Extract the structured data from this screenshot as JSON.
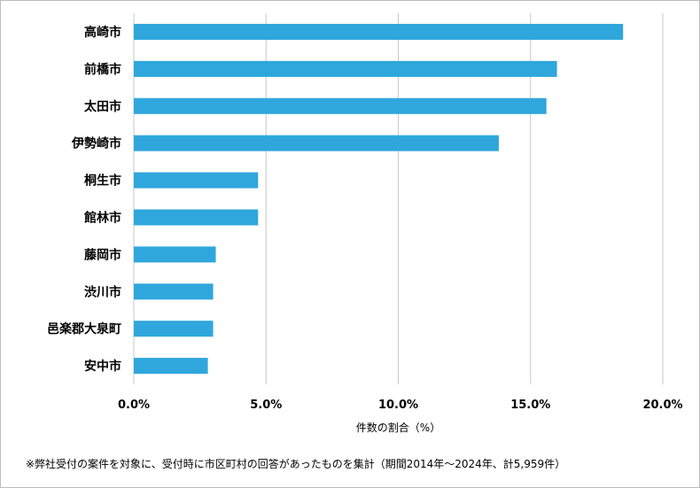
{
  "chart_data": {
    "type": "bar",
    "orientation": "horizontal",
    "categories": [
      "高崎市",
      "前橋市",
      "太田市",
      "伊勢崎市",
      "桐生市",
      "館林市",
      "藤岡市",
      "渋川市",
      "邑楽郡大泉町",
      "安中市"
    ],
    "values": [
      18.5,
      16.0,
      15.6,
      13.8,
      4.7,
      4.7,
      3.1,
      3.0,
      3.0,
      2.8
    ],
    "xlim": [
      0,
      20
    ],
    "xticks": [
      0,
      5,
      10,
      15,
      20
    ],
    "xtick_labels": [
      "0.0%",
      "5.0%",
      "10.0%",
      "15.0%",
      "20.0%"
    ],
    "xlabel": "件数の割合（%）",
    "bar_color": "#2fa7dc",
    "grid": "vertical",
    "legend": "none"
  },
  "footnote": "※弊社受付の案件を対象に、受付時に市区町村の回答があったものを集計（期間2014年～2024年、計5,959件）"
}
